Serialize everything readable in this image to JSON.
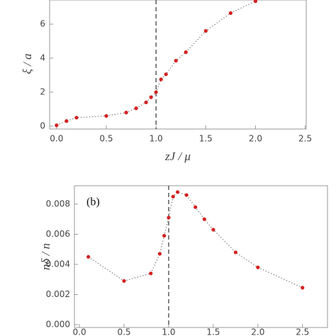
{
  "chart_data": [
    {
      "type": "line",
      "x_label": "zJ / μ",
      "y_label": "ξ / a",
      "x": [
        0.0,
        0.1,
        0.2,
        0.5,
        0.7,
        0.8,
        0.9,
        0.95,
        1.0,
        1.05,
        1.1,
        1.2,
        1.3,
        1.5,
        1.75,
        2.0
      ],
      "series": [
        {
          "color": "#d42020",
          "values": [
            0.05,
            0.3,
            0.5,
            0.6,
            0.8,
            1.05,
            1.4,
            1.7,
            2.0,
            2.75,
            3.05,
            3.85,
            4.35,
            5.6,
            6.65,
            7.35
          ]
        }
      ],
      "xlim": [
        -0.07,
        2.51
      ],
      "ylim": [
        -0.17,
        7.42
      ],
      "xticks": [
        {
          "value": 0,
          "label": "0.0"
        },
        {
          "value": 0.5,
          "label": "0.5"
        },
        {
          "value": 1,
          "label": "1.0"
        },
        {
          "value": 1.5,
          "label": "1.5"
        },
        {
          "value": 2,
          "label": "2.0"
        },
        {
          "value": 2.5,
          "label": "2.5"
        }
      ],
      "yticks": [
        0,
        2,
        4,
        6
      ],
      "vline": 1
    },
    {
      "type": "line",
      "annotation": "(b)",
      "y_label": "nδ / n",
      "x": [
        0.1,
        0.5,
        0.8,
        0.9,
        0.95,
        1.0,
        1.05,
        1.1,
        1.2,
        1.3,
        1.4,
        1.5,
        1.75,
        2.0,
        2.5
      ],
      "series": [
        {
          "color": "#d42020",
          "values": [
            0.0045,
            0.0029,
            0.0034,
            0.0047,
            0.0059,
            0.0071,
            0.0085,
            0.0088,
            0.0086,
            0.0078,
            0.007,
            0.0063,
            0.0048,
            0.0038,
            0.00245
          ]
        }
      ],
      "xlim": [
        -0.056,
        2.78
      ],
      "ylim": [
        -0.00019,
        0.00922
      ],
      "xticks": [
        {
          "value": 0,
          "label": "0.0"
        },
        {
          "value": 0.5,
          "label": "0.5"
        },
        {
          "value": 1,
          "label": "1.0"
        },
        {
          "value": 1.5,
          "label": "1.5"
        },
        {
          "value": 2,
          "label": "2.0"
        },
        {
          "value": 2.5,
          "label": "2.5"
        }
      ],
      "yticks": [
        {
          "value": 0,
          "label": "0.000"
        },
        {
          "value": 0.002,
          "label": "0.002"
        },
        {
          "value": 0.004,
          "label": "0.004"
        },
        {
          "value": 0.006,
          "label": "0.006"
        },
        {
          "value": 0.008,
          "label": "0.008"
        }
      ],
      "vline": 1
    }
  ]
}
